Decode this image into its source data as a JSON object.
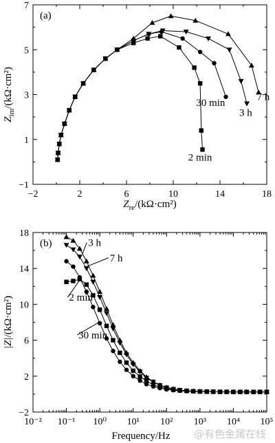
{
  "chart_data": [
    {
      "type": "scatter",
      "panel_label": "(a)",
      "xlabel_main": "Z",
      "xlabel_sub": "re",
      "xlabel_unit": "/(kΩ·cm²)",
      "ylabel_main": "Z",
      "ylabel_sub": "im",
      "ylabel_unit": "/(kΩ·cm²)",
      "xlim": [
        -2,
        18
      ],
      "ylim": [
        -1,
        7
      ],
      "xticks": [
        -2,
        2,
        6,
        10,
        14,
        18
      ],
      "yticks": [
        -1,
        1,
        3,
        5,
        7
      ],
      "grid": false,
      "series": [
        {
          "name": "2 min",
          "marker": "square",
          "x": [
            0.1,
            0.15,
            0.25,
            0.4,
            0.7,
            1.1,
            1.6,
            2.3,
            3.2,
            4.2,
            5.2,
            6.6,
            7.8,
            8.9,
            10.5,
            11.8,
            12.3,
            12.4,
            12.5
          ],
          "y": [
            0.1,
            0.4,
            0.8,
            1.2,
            1.7,
            2.3,
            2.9,
            3.5,
            4.1,
            4.6,
            5.0,
            5.3,
            5.5,
            5.6,
            5.1,
            4.2,
            3.5,
            1.4,
            0.55
          ]
        },
        {
          "name": "30 min",
          "marker": "circle",
          "x": [
            0.1,
            0.15,
            0.25,
            0.4,
            0.7,
            1.1,
            1.6,
            2.3,
            3.2,
            4.2,
            5.2,
            6.6,
            7.9,
            9.0,
            10.8,
            12.3,
            13.5,
            14.5
          ],
          "y": [
            0.1,
            0.4,
            0.8,
            1.2,
            1.7,
            2.3,
            2.9,
            3.5,
            4.1,
            4.6,
            5.0,
            5.4,
            5.7,
            5.8,
            5.5,
            4.9,
            4.4,
            2.9
          ]
        },
        {
          "name": "3 h",
          "marker": "triangle-down",
          "x": [
            0.1,
            0.15,
            0.25,
            0.4,
            0.7,
            1.1,
            1.6,
            2.3,
            3.2,
            4.2,
            5.2,
            6.6,
            7.9,
            9.1,
            11.1,
            13.0,
            14.8,
            15.8,
            16.3
          ],
          "y": [
            0.1,
            0.4,
            0.8,
            1.2,
            1.7,
            2.3,
            2.9,
            3.5,
            4.1,
            4.6,
            5.0,
            5.4,
            5.7,
            5.85,
            5.8,
            5.5,
            5.0,
            3.6,
            2.6
          ]
        },
        {
          "name": "7 h",
          "marker": "triangle-up",
          "x": [
            0.1,
            0.15,
            0.25,
            0.4,
            0.7,
            1.1,
            1.6,
            2.3,
            3.2,
            4.2,
            5.2,
            6.6,
            8.2,
            9.8,
            11.9,
            14.7,
            16.7,
            17.3
          ],
          "y": [
            0.1,
            0.4,
            0.8,
            1.2,
            1.7,
            2.3,
            2.9,
            3.5,
            4.1,
            4.6,
            5.0,
            5.5,
            6.2,
            6.5,
            6.3,
            5.7,
            4.3,
            3.1
          ]
        }
      ],
      "annotations": [
        {
          "text": "2 min",
          "at": [
            12.3,
            0.05
          ]
        },
        {
          "text": "30 min",
          "at": [
            13.2,
            2.5
          ]
        },
        {
          "text": "3 h",
          "at": [
            16.2,
            2.05
          ]
        },
        {
          "text": "7 h",
          "at": [
            17.7,
            2.75
          ]
        }
      ]
    },
    {
      "type": "scatter",
      "panel_label": "(b)",
      "xlabel": "Frequency/Hz",
      "ylabel_main": "|Z|",
      "ylabel_unit": "/(kΩ·cm²)",
      "xscale": "log",
      "xlim": [
        0.01,
        100000
      ],
      "ylim": [
        -2,
        18
      ],
      "xticks": [
        0.01,
        0.1,
        1,
        10,
        100,
        1000,
        10000,
        100000
      ],
      "xtick_labels": [
        "10⁻²",
        "10⁻¹",
        "10⁰",
        "10¹",
        "10²",
        "10³",
        "10⁴",
        "10⁵"
      ],
      "yticks": [
        -2,
        2,
        6,
        10,
        14,
        18
      ],
      "grid": false,
      "series": [
        {
          "name": "7 h",
          "marker": "triangle-up",
          "x": [
            0.1,
            0.16,
            0.25,
            0.4,
            0.63,
            1,
            1.6,
            2.5,
            4,
            6.3,
            10,
            16,
            25,
            40,
            63,
            100,
            160,
            250,
            400,
            630,
            1000,
            1600,
            2500,
            4000,
            6300,
            10000,
            16000,
            25000,
            40000,
            63000,
            100000
          ],
          "y": [
            17.5,
            17.1,
            16.2,
            14.8,
            13.2,
            11.4,
            9.5,
            7.7,
            6.0,
            4.6,
            3.5,
            2.6,
            1.9,
            1.4,
            1.0,
            0.75,
            0.58,
            0.45,
            0.38,
            0.33,
            0.3,
            0.28,
            0.27,
            0.26,
            0.25,
            0.25,
            0.24,
            0.24,
            0.24,
            0.24,
            0.24
          ]
        },
        {
          "name": "3 h",
          "marker": "triangle-down",
          "x": [
            0.1,
            0.16,
            0.25,
            0.4,
            0.63,
            1,
            1.6,
            2.5,
            4,
            6.3,
            10,
            16,
            25,
            40,
            63,
            100,
            160,
            250,
            400,
            630,
            1000,
            1600,
            2500,
            4000,
            6300,
            10000,
            16000,
            25000,
            40000,
            63000,
            100000
          ],
          "y": [
            16.6,
            16.1,
            15.3,
            14.0,
            12.5,
            10.8,
            9.0,
            7.3,
            5.7,
            4.4,
            3.3,
            2.5,
            1.8,
            1.35,
            0.98,
            0.72,
            0.56,
            0.45,
            0.38,
            0.33,
            0.3,
            0.28,
            0.27,
            0.26,
            0.25,
            0.25,
            0.24,
            0.24,
            0.24,
            0.24,
            0.24
          ]
        },
        {
          "name": "30 min",
          "marker": "circle",
          "x": [
            0.1,
            0.16,
            0.25,
            0.4,
            0.63,
            1,
            1.6,
            2.5,
            4,
            6.3,
            10,
            16,
            25,
            40,
            63,
            100,
            160,
            250,
            400,
            630,
            1000,
            1600,
            2500,
            4000,
            6300,
            10000,
            16000,
            25000,
            40000,
            63000,
            100000
          ],
          "y": [
            14.8,
            14.2,
            13.0,
            11.4,
            9.7,
            7.9,
            6.2,
            4.8,
            3.6,
            2.7,
            2.0,
            1.5,
            1.1,
            0.85,
            0.66,
            0.52,
            0.43,
            0.37,
            0.33,
            0.3,
            0.28,
            0.27,
            0.26,
            0.25,
            0.25,
            0.24,
            0.24,
            0.24,
            0.24,
            0.24,
            0.24
          ]
        },
        {
          "name": "2 min",
          "marker": "square",
          "x": [
            0.1,
            0.16,
            0.25,
            0.4,
            0.63,
            1,
            1.6,
            2.5,
            4,
            6.3,
            10,
            16,
            25,
            40,
            63,
            100,
            160,
            250,
            400,
            630,
            1000,
            1600,
            2500,
            4000,
            6300,
            10000,
            16000,
            25000,
            40000,
            63000,
            100000
          ],
          "y": [
            12.5,
            12.6,
            12.8,
            12.2,
            11.0,
            9.4,
            7.6,
            6.0,
            4.6,
            3.5,
            2.6,
            1.95,
            1.45,
            1.05,
            0.8,
            0.6,
            0.48,
            0.4,
            0.35,
            0.31,
            0.29,
            0.27,
            0.26,
            0.25,
            0.25,
            0.24,
            0.24,
            0.24,
            0.24,
            0.24,
            0.24
          ]
        }
      ],
      "annotations": [
        {
          "text": "3 h",
          "at": [
            0.45,
            16.5
          ],
          "arrow_to": [
            0.3,
            15.6
          ]
        },
        {
          "text": "7 h",
          "at": [
            2.0,
            14.8
          ],
          "arrow_to": [
            0.4,
            14.2
          ]
        },
        {
          "text": "2 min",
          "at": [
            0.12,
            10.4
          ],
          "arrow_to": [
            0.25,
            12.7
          ]
        },
        {
          "text": "30 min",
          "at": [
            0.23,
            6.2
          ],
          "arrow_to": [
            0.95,
            8.0
          ]
        }
      ]
    }
  ],
  "watermark": "@有色金属在线"
}
